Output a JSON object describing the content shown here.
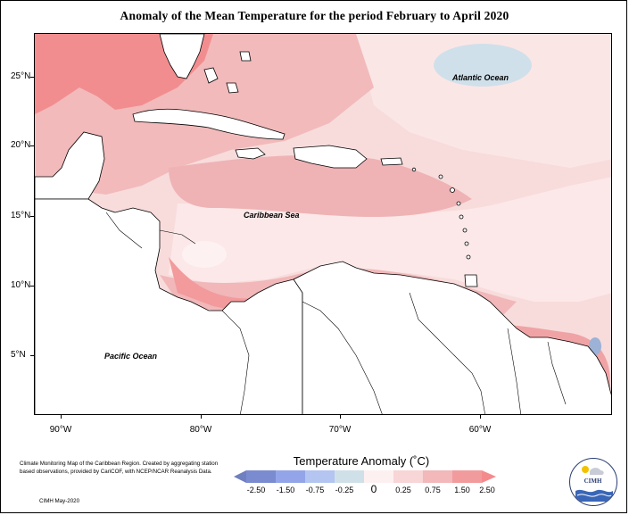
{
  "title": "Anomaly of the Mean Temperature for the period February to April 2020",
  "map": {
    "lat_labels": [
      "25°N",
      "20°N",
      "15°N",
      "10°N",
      "5°N"
    ],
    "lon_labels": [
      "90°W",
      "80°W",
      "70°W",
      "60°W"
    ],
    "ocean_labels": {
      "atlantic": "Atlantic Ocean",
      "caribbean": "Caribbean Sea",
      "pacific": "Pacific Ocean"
    },
    "colors": {
      "land": "#ffffff",
      "coast": "#000000",
      "background_anomaly": "#f6d3d3"
    }
  },
  "legend": {
    "title": "Temperature Anomaly (˚C)",
    "labels": [
      "-2.50",
      "-1.50",
      "-0.75",
      "-0.25",
      "0",
      "0.25",
      "0.75",
      "1.50",
      "2.50"
    ],
    "colors": [
      "#6f7fbf",
      "#8b9be0",
      "#aab9ef",
      "#c9dcf0",
      "#d9e6ee",
      "#fce9ea",
      "#f6cdd0",
      "#f0adaf",
      "#f58a8c"
    ]
  },
  "credit": {
    "text": "Climate Monitoring Map of the Caribbean Region. Created by aggregating station based observations, provided by CariCOF, with NCEP/NCAR Reanalysis Data.",
    "date": "CIMH May-2020"
  },
  "logo": {
    "text": "CIMH"
  }
}
